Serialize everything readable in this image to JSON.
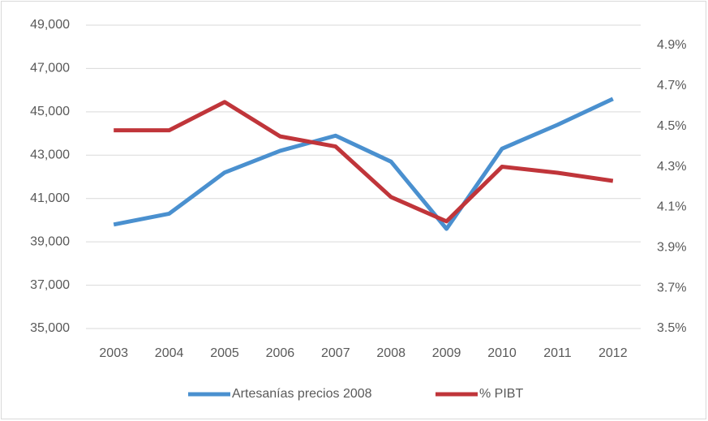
{
  "chart_data": {
    "type": "line",
    "categories": [
      "2003",
      "2004",
      "2005",
      "2006",
      "2007",
      "2008",
      "2009",
      "2010",
      "2011",
      "2012"
    ],
    "series": [
      {
        "name": "Artesanías precios 2008",
        "color": "#4a90cf",
        "values": [
          39800,
          40300,
          42200,
          43200,
          43900,
          42700,
          39600,
          43300,
          44400,
          45600
        ]
      },
      {
        "name": "% PIBT",
        "color": "#c0353a",
        "axis": "y2",
        "values": [
          4.48,
          4.48,
          4.62,
          4.45,
          4.4,
          4.15,
          4.03,
          4.3,
          4.27,
          4.23
        ]
      }
    ],
    "ylim": [
      35000,
      49000
    ],
    "yticks": [
      {
        "value": 35000,
        "label": "35,000"
      },
      {
        "value": 37000,
        "label": "37,000"
      },
      {
        "value": 39000,
        "label": "39,000"
      },
      {
        "value": 41000,
        "label": "41,000"
      },
      {
        "value": 43000,
        "label": "43,000"
      },
      {
        "value": 45000,
        "label": "45,000"
      },
      {
        "value": 47000,
        "label": "47,000"
      },
      {
        "value": 49000,
        "label": "49,000"
      }
    ],
    "y2lim": [
      3.5,
      5.0
    ],
    "y2ticks": [
      {
        "value": 3.5,
        "label": "3.5%"
      },
      {
        "value": 3.7,
        "label": "3.7%"
      },
      {
        "value": 3.9,
        "label": "3.9%"
      },
      {
        "value": 4.1,
        "label": "4.1%"
      },
      {
        "value": 4.3,
        "label": "4.3%"
      },
      {
        "value": 4.5,
        "label": "4.5%"
      },
      {
        "value": 4.7,
        "label": "4.7%"
      },
      {
        "value": 4.9,
        "label": "4.9%"
      }
    ],
    "grid": true,
    "legend": "bottom"
  }
}
